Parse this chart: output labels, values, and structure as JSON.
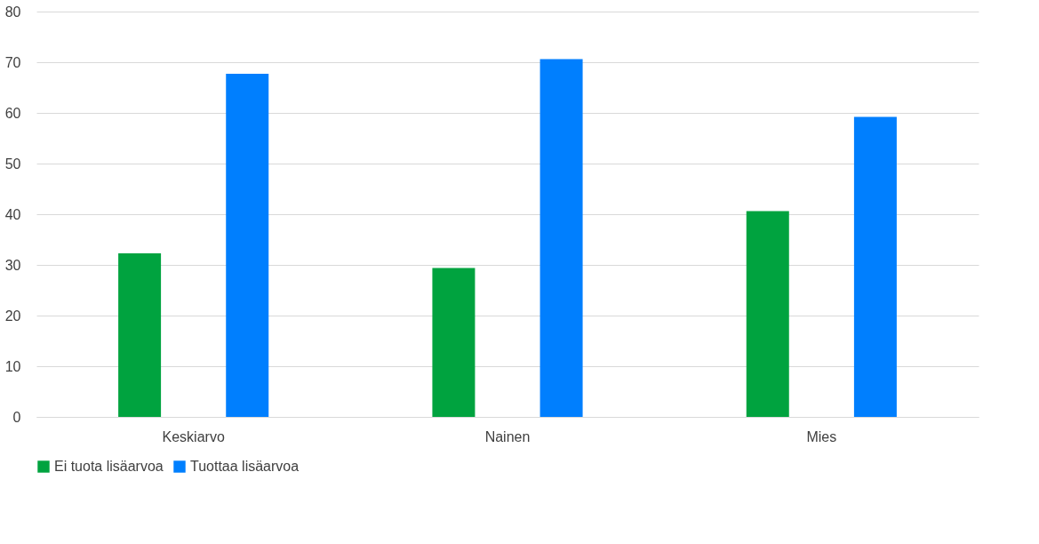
{
  "chart_data": {
    "type": "bar",
    "categories": [
      "Keskiarvo",
      "Nainen",
      "Mies"
    ],
    "series": [
      {
        "name": "Ei tuota lisäarvoa",
        "color": "#00a33f",
        "values": [
          32.3,
          29.4,
          40.6
        ]
      },
      {
        "name": "Tuottaa lisäarvoa",
        "color": "#007ffe",
        "values": [
          67.7,
          70.6,
          59.2
        ]
      }
    ],
    "ylim": [
      0,
      80
    ],
    "yticks": [
      0,
      10,
      20,
      30,
      40,
      50,
      60,
      70,
      80
    ],
    "grid": "y",
    "legend": "bottom"
  }
}
